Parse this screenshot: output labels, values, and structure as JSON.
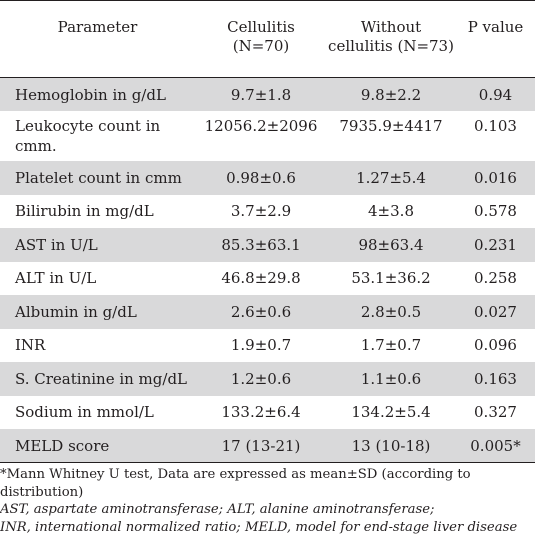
{
  "table": {
    "headers": {
      "parameter": "Parameter",
      "cellulitis": "Cellulitis (N=70)",
      "without_line1": "Without",
      "without_line2": "cellulitis (N=73)",
      "pvalue": "P value"
    },
    "rows": [
      {
        "parameter": "Hemoglobin in g/dL",
        "cellulitis": "9.7±1.8",
        "without": "9.8±2.2",
        "p": "0.94"
      },
      {
        "parameter": "Leukocyte count in cmm.",
        "cellulitis": "12056.2±2096",
        "without": "7935.9±4417",
        "p": "0.103"
      },
      {
        "parameter": "Platelet count in cmm",
        "cellulitis": "0.98±0.6",
        "without": "1.27±5.4",
        "p": "0.016"
      },
      {
        "parameter": "Bilirubin in mg/dL",
        "cellulitis": "3.7±2.9",
        "without": "4±3.8",
        "p": "0.578"
      },
      {
        "parameter": "AST in U/L",
        "cellulitis": "85.3±63.1",
        "without": "98±63.4",
        "p": "0.231"
      },
      {
        "parameter": "ALT in U/L",
        "cellulitis": "46.8±29.8",
        "without": "53.1±36.2",
        "p": "0.258"
      },
      {
        "parameter": "Albumin in g/dL",
        "cellulitis": "2.6±0.6",
        "without": "2.8±0.5",
        "p": "0.027"
      },
      {
        "parameter": "INR",
        "cellulitis": "1.9±0.7",
        "without": "1.7±0.7",
        "p": "0.096"
      },
      {
        "parameter": "S. Creatinine in mg/dL",
        "cellulitis": "1.2±0.6",
        "without": "1.1±0.6",
        "p": "0.163"
      },
      {
        "parameter": "Sodium in mmol/L",
        "cellulitis": "133.2±6.4",
        "without": "134.2±5.4",
        "p": "0.327"
      },
      {
        "parameter": "MELD score",
        "cellulitis": "17 (13-21)",
        "without": "13 (10-18)",
        "p": "0.005*"
      }
    ]
  },
  "notes": {
    "footnote": "*Mann Whitney U test, Data are expressed as mean±SD (according to distribution)",
    "abbrev_line1": "AST, aspartate aminotransferase; ALT, alanine aminotransferase;",
    "abbrev_line2": "INR, international normalized ratio; MELD, model for end-stage liver disease"
  }
}
